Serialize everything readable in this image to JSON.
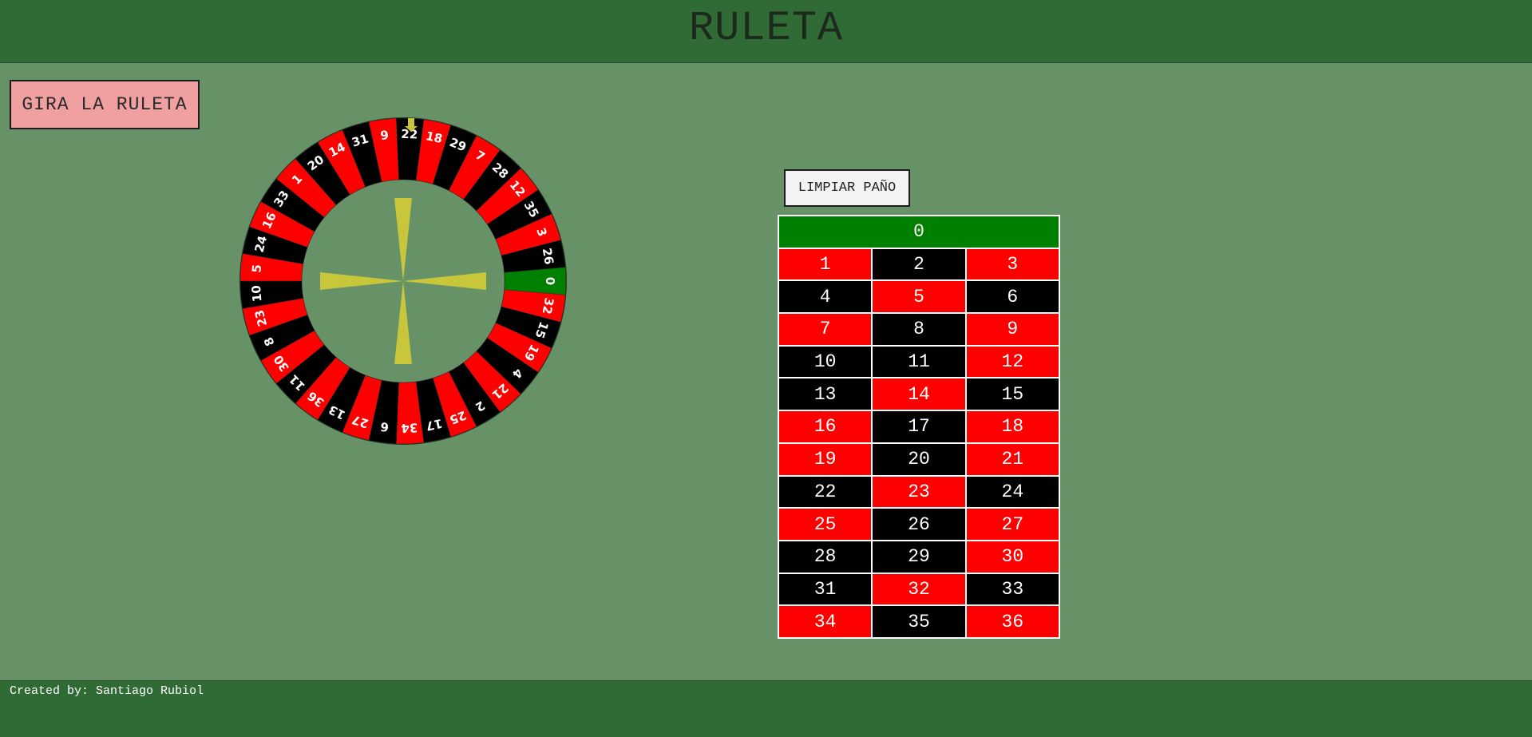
{
  "header": {
    "title": "RULETA"
  },
  "controls": {
    "spin_label": "GIRA LA RULETA",
    "clear_label": "LIMPIAR PAÑO"
  },
  "colors": {
    "red": "#ff0000",
    "black": "#000000",
    "green": "#008000",
    "pointer": "#c8c63a",
    "felt": "#679268",
    "header": "#306a35"
  },
  "wheel": {
    "sequence": [
      "0",
      "32",
      "15",
      "19",
      "4",
      "21",
      "2",
      "25",
      "17",
      "34",
      "6",
      "27",
      "13",
      "36",
      "11",
      "30",
      "8",
      "23",
      "10",
      "5",
      "24",
      "16",
      "33",
      "1",
      "20",
      "14",
      "31",
      "9",
      "22",
      "18",
      "29",
      "7",
      "28",
      "12",
      "35",
      "3",
      "26"
    ],
    "start_angle_deg": 0,
    "direction": "clockwise"
  },
  "board": {
    "zero": "0",
    "rows": [
      [
        {
          "n": "1",
          "c": "red"
        },
        {
          "n": "2",
          "c": "black"
        },
        {
          "n": "3",
          "c": "red"
        }
      ],
      [
        {
          "n": "4",
          "c": "black"
        },
        {
          "n": "5",
          "c": "red"
        },
        {
          "n": "6",
          "c": "black"
        }
      ],
      [
        {
          "n": "7",
          "c": "red"
        },
        {
          "n": "8",
          "c": "black"
        },
        {
          "n": "9",
          "c": "red"
        }
      ],
      [
        {
          "n": "10",
          "c": "black"
        },
        {
          "n": "11",
          "c": "black"
        },
        {
          "n": "12",
          "c": "red"
        }
      ],
      [
        {
          "n": "13",
          "c": "black"
        },
        {
          "n": "14",
          "c": "red"
        },
        {
          "n": "15",
          "c": "black"
        }
      ],
      [
        {
          "n": "16",
          "c": "red"
        },
        {
          "n": "17",
          "c": "black"
        },
        {
          "n": "18",
          "c": "red"
        }
      ],
      [
        {
          "n": "19",
          "c": "red"
        },
        {
          "n": "20",
          "c": "black"
        },
        {
          "n": "21",
          "c": "red"
        }
      ],
      [
        {
          "n": "22",
          "c": "black"
        },
        {
          "n": "23",
          "c": "red"
        },
        {
          "n": "24",
          "c": "black"
        }
      ],
      [
        {
          "n": "25",
          "c": "red"
        },
        {
          "n": "26",
          "c": "black"
        },
        {
          "n": "27",
          "c": "red"
        }
      ],
      [
        {
          "n": "28",
          "c": "black"
        },
        {
          "n": "29",
          "c": "black"
        },
        {
          "n": "30",
          "c": "red"
        }
      ],
      [
        {
          "n": "31",
          "c": "black"
        },
        {
          "n": "32",
          "c": "red"
        },
        {
          "n": "33",
          "c": "black"
        }
      ],
      [
        {
          "n": "34",
          "c": "red"
        },
        {
          "n": "35",
          "c": "black"
        },
        {
          "n": "36",
          "c": "red"
        }
      ]
    ]
  },
  "footer": {
    "credit": "Created by: Santiago Rubiol"
  }
}
